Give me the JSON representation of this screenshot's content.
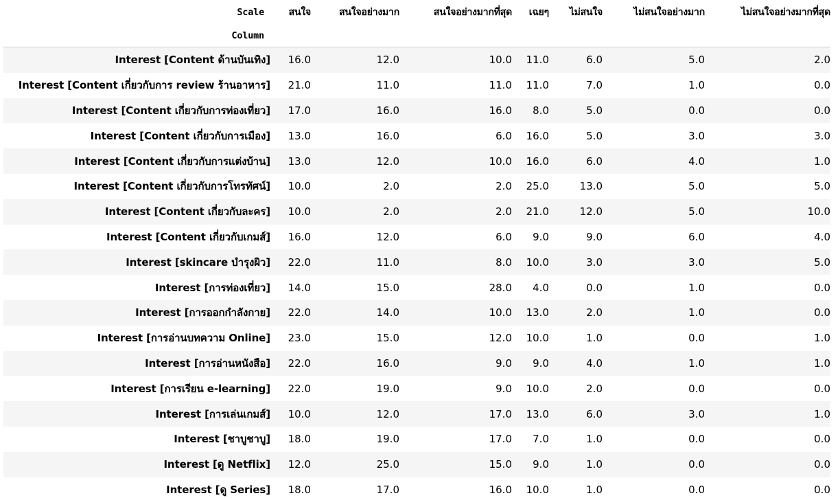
{
  "table": {
    "columns_label": "Scale",
    "index_label": "Column",
    "columns": [
      "สนใจ",
      "สนใจอย่างมาก",
      "สนใจอย่างมากที่สุด",
      "เฉยๆ",
      "ไม่สนใจ",
      "ไม่สนใจอย่างมาก",
      "ไม่สนใจอย่างมากที่สุด"
    ],
    "rows": [
      {
        "label": "Interest [Content ด้านบันเทิง]",
        "values": [
          "16.0",
          "12.0",
          "10.0",
          "11.0",
          "6.0",
          "5.0",
          "2.0"
        ]
      },
      {
        "label": "Interest [Content เกี่ยวกับการ review ร้านอาหาร]",
        "values": [
          "21.0",
          "11.0",
          "11.0",
          "11.0",
          "7.0",
          "1.0",
          "0.0"
        ]
      },
      {
        "label": "Interest [Content เกี่ยวกับการท่องเที่ยว]",
        "values": [
          "17.0",
          "16.0",
          "16.0",
          "8.0",
          "5.0",
          "0.0",
          "0.0"
        ]
      },
      {
        "label": "Interest [Content เกี่ยวกับการเมือง]",
        "values": [
          "13.0",
          "16.0",
          "6.0",
          "16.0",
          "5.0",
          "3.0",
          "3.0"
        ]
      },
      {
        "label": "Interest [Content เกี่ยวกับการแต่งบ้าน]",
        "values": [
          "13.0",
          "12.0",
          "10.0",
          "16.0",
          "6.0",
          "4.0",
          "1.0"
        ]
      },
      {
        "label": "Interest [Content เกี่ยวกับการโทรทัศน์]",
        "values": [
          "10.0",
          "2.0",
          "2.0",
          "25.0",
          "13.0",
          "5.0",
          "5.0"
        ]
      },
      {
        "label": "Interest [Content เกี่ยวกับละคร]",
        "values": [
          "10.0",
          "2.0",
          "2.0",
          "21.0",
          "12.0",
          "5.0",
          "10.0"
        ]
      },
      {
        "label": "Interest [Content เกี่ยวกับเกมส์]",
        "values": [
          "16.0",
          "12.0",
          "6.0",
          "9.0",
          "9.0",
          "6.0",
          "4.0"
        ]
      },
      {
        "label": "Interest [skincare บำรุงผิว]",
        "values": [
          "22.0",
          "11.0",
          "8.0",
          "10.0",
          "3.0",
          "3.0",
          "5.0"
        ]
      },
      {
        "label": "Interest [การท่องเที่ยว]",
        "values": [
          "14.0",
          "15.0",
          "28.0",
          "4.0",
          "0.0",
          "1.0",
          "0.0"
        ]
      },
      {
        "label": "Interest [การออกกำลังกาย]",
        "values": [
          "22.0",
          "14.0",
          "10.0",
          "13.0",
          "2.0",
          "1.0",
          "0.0"
        ]
      },
      {
        "label": "Interest [การอ่านบทความ Online]",
        "values": [
          "23.0",
          "15.0",
          "12.0",
          "10.0",
          "1.0",
          "0.0",
          "1.0"
        ]
      },
      {
        "label": "Interest [การอ่านหนังสือ]",
        "values": [
          "22.0",
          "16.0",
          "9.0",
          "9.0",
          "4.0",
          "1.0",
          "1.0"
        ]
      },
      {
        "label": "Interest [การเรียน e-learning]",
        "values": [
          "22.0",
          "19.0",
          "9.0",
          "10.0",
          "2.0",
          "0.0",
          "0.0"
        ]
      },
      {
        "label": "Interest [การเล่นเกมส์]",
        "values": [
          "10.0",
          "12.0",
          "17.0",
          "13.0",
          "6.0",
          "3.0",
          "1.0"
        ]
      },
      {
        "label": "Interest [ชาบูชาบู]",
        "values": [
          "18.0",
          "19.0",
          "17.0",
          "7.0",
          "1.0",
          "0.0",
          "0.0"
        ]
      },
      {
        "label": "Interest [ดู Netflix]",
        "values": [
          "12.0",
          "25.0",
          "15.0",
          "9.0",
          "1.0",
          "0.0",
          "0.0"
        ]
      },
      {
        "label": "Interest [ดู Series]",
        "values": [
          "18.0",
          "17.0",
          "16.0",
          "10.0",
          "1.0",
          "0.0",
          "0.0"
        ]
      }
    ]
  }
}
